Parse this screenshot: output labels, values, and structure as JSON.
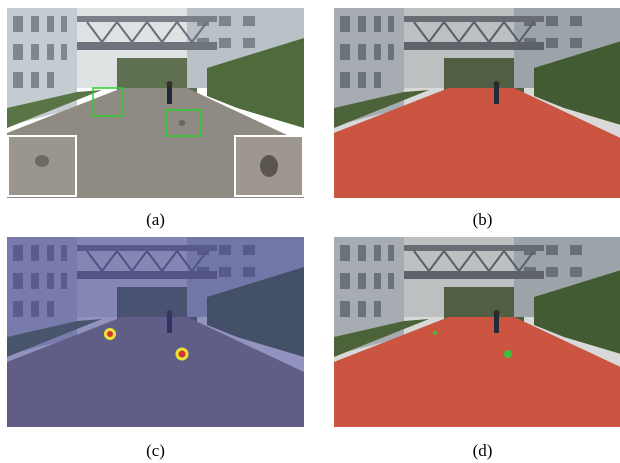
{
  "figure": {
    "panels": [
      {
        "id": "a",
        "caption": "(a)",
        "content": "original-scene-with-detections"
      },
      {
        "id": "b",
        "caption": "(b)",
        "content": "road-segmentation-red"
      },
      {
        "id": "c",
        "caption": "(c)",
        "content": "anomaly-heatmap"
      },
      {
        "id": "d",
        "caption": "(d)",
        "content": "segmentation-with-detected-obstacles"
      }
    ],
    "colors": {
      "sky": "#d8dcde",
      "building": "#c9cfd4",
      "road": "#8f8a82",
      "vegetation": "#4a6a3a",
      "detection_box": "#2fd12f",
      "segmentation": "#d9503a",
      "heatmap_tint": "#3a3a8c",
      "hotspot_outer": "#e8e23a",
      "hotspot_inner": "#d83030",
      "obstacle_point": "#3fbf3f"
    }
  }
}
